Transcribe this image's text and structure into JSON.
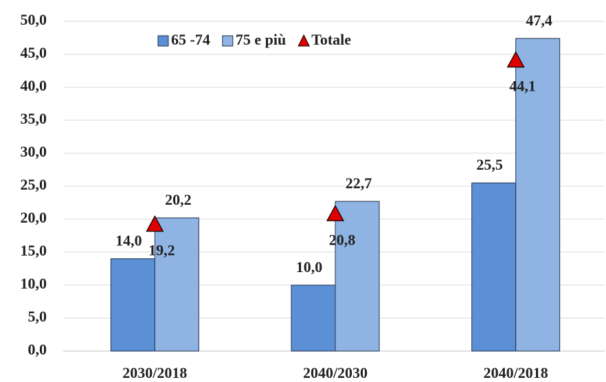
{
  "chart_data": {
    "type": "bar",
    "categories": [
      "2030/2018",
      "2040/2030",
      "2040/2018"
    ],
    "series": [
      {
        "name": "65 -74",
        "color": "#5b8fd6",
        "values": [
          14.0,
          10.0,
          25.5
        ],
        "value_labels": [
          "14,0",
          "10,0",
          "25,5"
        ]
      },
      {
        "name": "75 e più",
        "color": "#8fb4e3",
        "values": [
          20.2,
          22.7,
          47.4
        ],
        "value_labels": [
          "20,2",
          "22,7",
          "47,4"
        ]
      },
      {
        "name": "Totale",
        "type": "scatter",
        "marker": "triangle",
        "color": "#e00000",
        "values": [
          19.2,
          20.8,
          44.1
        ],
        "value_labels": [
          "19,2",
          "20,8",
          "44,1"
        ]
      }
    ],
    "ylim": [
      0,
      50
    ],
    "yticks": [
      {
        "value": 0,
        "label": "0,0"
      },
      {
        "value": 5,
        "label": "5,0"
      },
      {
        "value": 10,
        "label": "10,0"
      },
      {
        "value": 15,
        "label": "15,0"
      },
      {
        "value": 20,
        "label": "20,0"
      },
      {
        "value": 25,
        "label": "25,0"
      },
      {
        "value": 30,
        "label": "30,0"
      },
      {
        "value": 35,
        "label": "35,0"
      },
      {
        "value": 40,
        "label": "40,0"
      },
      {
        "value": 45,
        "label": "45,0"
      },
      {
        "value": 50,
        "label": "50,0"
      }
    ],
    "grid": true,
    "legend": "top"
  }
}
